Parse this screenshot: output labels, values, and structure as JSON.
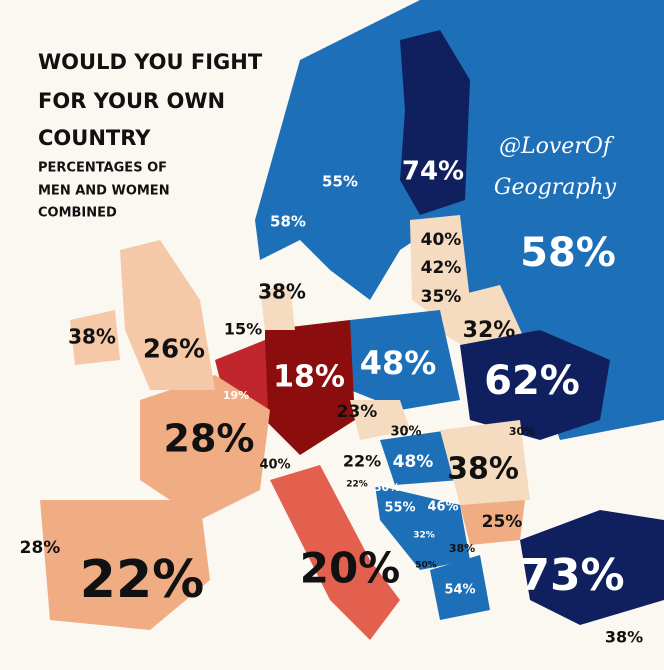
{
  "title": [
    "WOULD YOU FIGHT",
    "FOR YOUR OWN",
    "COUNTRY"
  ],
  "subtitle": [
    "PERCENTAGES OF",
    "MEN AND WOMEN",
    "COMBINED"
  ],
  "watermark": [
    "@LoverOf",
    "Geography"
  ],
  "regions": [
    {
      "label": "74%"
    },
    {
      "label": "55%"
    },
    {
      "label": "58%"
    },
    {
      "label": "58%"
    },
    {
      "label": "40%"
    },
    {
      "label": "42%"
    },
    {
      "label": "35%"
    },
    {
      "label": "38%"
    },
    {
      "label": "38%"
    },
    {
      "label": "26%"
    },
    {
      "label": "15%"
    },
    {
      "label": "19%"
    },
    {
      "label": "18%"
    },
    {
      "label": "48%"
    },
    {
      "label": "32%"
    },
    {
      "label": "62%"
    },
    {
      "label": "23%"
    },
    {
      "label": "30%"
    },
    {
      "label": "30%"
    },
    {
      "label": "28%"
    },
    {
      "label": "40%"
    },
    {
      "label": "22%"
    },
    {
      "label": "48%"
    },
    {
      "label": "38%"
    },
    {
      "label": "22%"
    },
    {
      "label": "50%"
    },
    {
      "label": "55%"
    },
    {
      "label": "46%"
    },
    {
      "label": "25%"
    },
    {
      "label": "32%"
    },
    {
      "label": "38%"
    },
    {
      "label": "50%"
    },
    {
      "label": "28%"
    },
    {
      "label": "22%"
    },
    {
      "label": "20%"
    },
    {
      "label": "54%"
    },
    {
      "label": "73%"
    },
    {
      "label": "38%"
    }
  ]
}
